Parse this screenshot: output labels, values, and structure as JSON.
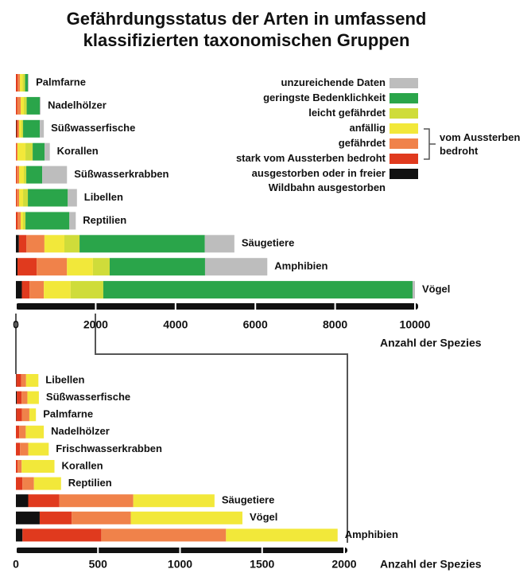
{
  "chart_data": [
    {
      "type": "hbar_stacked",
      "title": "Gefährdungsstatus der Arten in umfassend klassifizierten taxonomischen Gruppen",
      "categories": [
        "Palmfarne",
        "Nadelhölzer",
        "Süßwasserfische",
        "Korallen",
        "Süßwasserkrabben",
        "Libellen",
        "Reptilien",
        "Säugetiere",
        "Amphibien",
        "Vögel"
      ],
      "series": [
        {
          "name": "ausgestorben oder in freier Wildbahn ausgestorben",
          "color": "#111111",
          "values": [
            0,
            0,
            10,
            0,
            0,
            0,
            0,
            75,
            40,
            150
          ]
        },
        {
          "name": "stark vom Aussterben bedroht",
          "color": "#e03a1e",
          "values": [
            40,
            30,
            30,
            10,
            20,
            20,
            40,
            190,
            480,
            190
          ]
        },
        {
          "name": "gefährdet",
          "color": "#f0824a",
          "values": [
            60,
            90,
            40,
            30,
            60,
            60,
            80,
            450,
            760,
            360
          ]
        },
        {
          "name": "anfällig",
          "color": "#f2e83a",
          "values": [
            70,
            80,
            60,
            200,
            120,
            100,
            60,
            500,
            650,
            670
          ]
        },
        {
          "name": "leicht gefährdet",
          "color": "#cfdc3a",
          "values": [
            60,
            70,
            40,
            180,
            60,
            120,
            60,
            380,
            420,
            820
          ]
        },
        {
          "name": "geringste Bedenklichkeit",
          "color": "#2aa54a",
          "values": [
            70,
            330,
            420,
            300,
            400,
            1000,
            1100,
            3140,
            2390,
            7750
          ]
        },
        {
          "name": "unzureichende Daten",
          "color": "#bdbdbd",
          "values": [
            20,
            20,
            100,
            130,
            620,
            230,
            160,
            740,
            1560,
            60
          ]
        }
      ],
      "xlim": [
        0,
        10000
      ],
      "xticks": [
        0,
        2000,
        4000,
        6000,
        8000,
        10000
      ],
      "x_label": "Anzahl der Spezies",
      "legend": "upper right",
      "legend_group": "vom Aussterben bedroht"
    },
    {
      "type": "hbar_stacked",
      "categories": [
        "Libellen",
        "Süßwasserfische",
        "Palmfarne",
        "Nadelhölzer",
        "Frischwasserkrabben",
        "Korallen",
        "Reptilien",
        "Säugetiere",
        "Vögel",
        "Amphibien"
      ],
      "series": [
        {
          "color": "#111111",
          "values": [
            2,
            5,
            2,
            0,
            0,
            0,
            0,
            75,
            145,
            40
          ]
        },
        {
          "color": "#e03a1e",
          "values": [
            30,
            30,
            35,
            20,
            25,
            10,
            40,
            190,
            195,
            480
          ]
        },
        {
          "color": "#f0824a",
          "values": [
            30,
            35,
            45,
            40,
            50,
            25,
            70,
            450,
            360,
            760
          ]
        },
        {
          "color": "#f2e83a",
          "values": [
            75,
            70,
            40,
            110,
            125,
            200,
            165,
            495,
            680,
            680
          ]
        }
      ],
      "xlim": [
        0,
        2000
      ],
      "xticks": [
        0,
        500,
        1000,
        1500,
        2000
      ],
      "x_label": "Anzahl der Spezies"
    }
  ]
}
